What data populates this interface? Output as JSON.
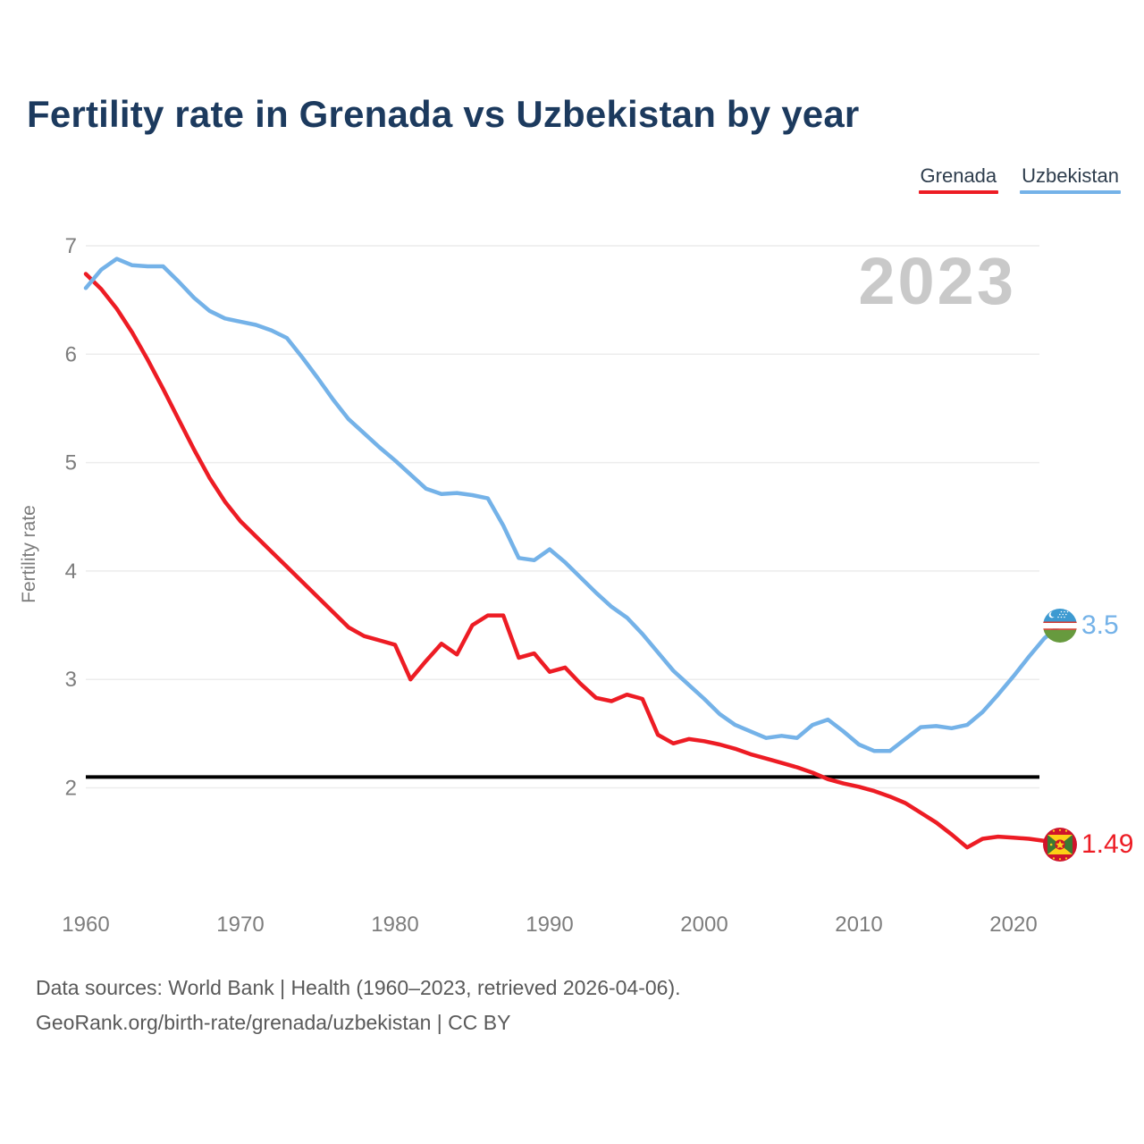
{
  "header": {
    "title": "Fertility rate in Grenada vs Uzbekistan by year"
  },
  "legend": {
    "items": [
      {
        "label": "Grenada",
        "color": "#ed1c24"
      },
      {
        "label": "Uzbekistan",
        "color": "#74b2e8"
      }
    ]
  },
  "watermark": "2023",
  "axes": {
    "y": {
      "label": "Fertility rate",
      "ticks": [
        "7",
        "6",
        "5",
        "4",
        "3",
        "2"
      ]
    },
    "x": {
      "ticks": [
        "1960",
        "1970",
        "1980",
        "1990",
        "2000",
        "2010",
        "2020"
      ]
    }
  },
  "reference_line": {
    "value": 2.1,
    "color": "#000000"
  },
  "end_labels": {
    "uzbekistan": {
      "value": "3.5",
      "color": "#74b2e8"
    },
    "grenada": {
      "value": "1.49",
      "color": "#ed1c24"
    }
  },
  "footer": {
    "line1": "Data sources: World Bank | Health (1960–2023, retrieved 2026-04-06).",
    "line2": "GeoRank.org/birth-rate/grenada/uzbekistan | CC BY"
  },
  "chart_data": {
    "type": "line",
    "title": "Fertility rate in Grenada vs Uzbekistan by year",
    "xlabel": "",
    "ylabel": "Fertility rate",
    "xlim": [
      1960,
      2023
    ],
    "ylim": [
      1.2,
      7.0
    ],
    "grid": "horizontal",
    "legend_position": "top-right",
    "x": [
      1960,
      1961,
      1962,
      1963,
      1964,
      1965,
      1966,
      1967,
      1968,
      1969,
      1970,
      1971,
      1972,
      1973,
      1974,
      1975,
      1976,
      1977,
      1978,
      1979,
      1980,
      1981,
      1982,
      1983,
      1984,
      1985,
      1986,
      1987,
      1988,
      1989,
      1990,
      1991,
      1992,
      1993,
      1994,
      1995,
      1996,
      1997,
      1998,
      1999,
      2000,
      2001,
      2002,
      2003,
      2004,
      2005,
      2006,
      2007,
      2008,
      2009,
      2010,
      2011,
      2012,
      2013,
      2014,
      2015,
      2016,
      2017,
      2018,
      2019,
      2020,
      2021,
      2022,
      2023
    ],
    "series": [
      {
        "name": "Grenada",
        "color": "#ed1c24",
        "last_value_label": "1.49",
        "values": [
          6.74,
          6.6,
          6.42,
          6.2,
          5.95,
          5.68,
          5.4,
          5.12,
          4.86,
          4.64,
          4.46,
          4.32,
          4.18,
          4.04,
          3.9,
          3.76,
          3.62,
          3.48,
          3.4,
          3.36,
          3.32,
          3.0,
          3.17,
          3.33,
          3.23,
          3.5,
          3.59,
          3.59,
          3.2,
          3.24,
          3.07,
          3.11,
          2.96,
          2.83,
          2.8,
          2.86,
          2.82,
          2.49,
          2.41,
          2.45,
          2.43,
          2.4,
          2.36,
          2.31,
          2.27,
          2.23,
          2.19,
          2.14,
          2.08,
          2.04,
          2.01,
          1.97,
          1.92,
          1.86,
          1.77,
          1.68,
          1.57,
          1.45,
          1.53,
          1.55,
          1.54,
          1.53,
          1.51,
          1.49
        ]
      },
      {
        "name": "Uzbekistan",
        "color": "#74b2e8",
        "last_value_label": "3.5",
        "values": [
          6.61,
          6.78,
          6.88,
          6.82,
          6.81,
          6.81,
          6.67,
          6.52,
          6.4,
          6.33,
          6.3,
          6.27,
          6.22,
          6.15,
          5.97,
          5.78,
          5.58,
          5.4,
          5.27,
          5.14,
          5.02,
          4.89,
          4.76,
          4.71,
          4.72,
          4.7,
          4.67,
          4.42,
          4.12,
          4.1,
          4.2,
          4.08,
          3.94,
          3.8,
          3.67,
          3.57,
          3.42,
          3.25,
          3.08,
          2.95,
          2.82,
          2.68,
          2.58,
          2.52,
          2.46,
          2.48,
          2.46,
          2.58,
          2.63,
          2.52,
          2.4,
          2.34,
          2.34,
          2.45,
          2.56,
          2.57,
          2.55,
          2.58,
          2.7,
          2.86,
          3.03,
          3.21,
          3.38,
          3.5
        ]
      }
    ],
    "reference_line": {
      "value": 2.1
    },
    "watermark": "2023"
  }
}
